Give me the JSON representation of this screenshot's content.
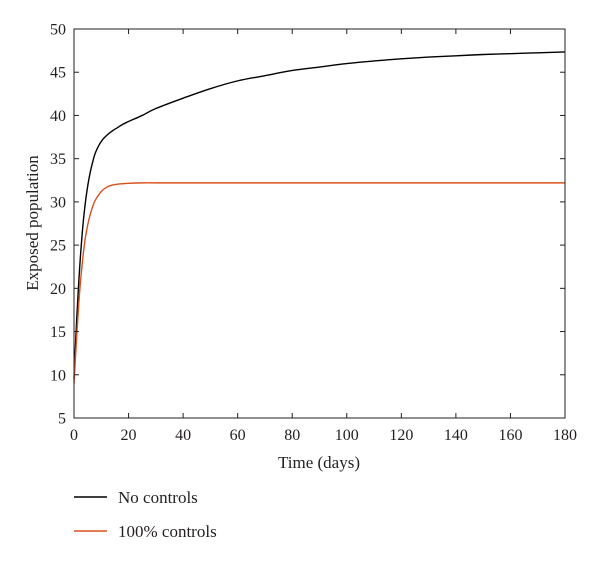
{
  "chart_data": {
    "type": "line",
    "xlabel": "Time (days)",
    "ylabel": "Exposed population",
    "xlim": [
      0,
      180
    ],
    "ylim": [
      5,
      50
    ],
    "xticks": [
      0,
      20,
      40,
      60,
      80,
      100,
      120,
      140,
      160,
      180
    ],
    "yticks": [
      5,
      10,
      15,
      20,
      25,
      30,
      35,
      40,
      45,
      50
    ],
    "grid": false,
    "legend_position": "bottom-left, below plot",
    "series": [
      {
        "name": "No controls",
        "color": "#000000",
        "x": [
          0,
          1,
          2,
          3,
          4,
          5,
          6,
          7,
          8,
          10,
          12,
          14,
          16,
          18,
          20,
          25,
          30,
          40,
          50,
          60,
          70,
          80,
          90,
          100,
          110,
          120,
          130,
          140,
          150,
          160,
          170,
          180
        ],
        "y": [
          9.5,
          16.5,
          22.0,
          26.3,
          29.5,
          31.8,
          33.5,
          34.8,
          35.8,
          37.0,
          37.7,
          38.2,
          38.6,
          39.0,
          39.3,
          40.0,
          40.8,
          42.0,
          43.1,
          44.0,
          44.6,
          45.2,
          45.6,
          46.0,
          46.3,
          46.55,
          46.75,
          46.9,
          47.05,
          47.15,
          47.25,
          47.35
        ]
      },
      {
        "name": "100% controls",
        "color": "#d9501f",
        "x": [
          0,
          1,
          2,
          3,
          4,
          5,
          6,
          7,
          8,
          10,
          12,
          14,
          16,
          18,
          20,
          25,
          30,
          40,
          60,
          80,
          100,
          120,
          140,
          160,
          180
        ],
        "y": [
          9.0,
          14.5,
          19.3,
          22.8,
          25.5,
          27.3,
          28.6,
          29.6,
          30.3,
          31.2,
          31.7,
          31.95,
          32.05,
          32.1,
          32.15,
          32.2,
          32.2,
          32.2,
          32.2,
          32.2,
          32.2,
          32.2,
          32.2,
          32.2,
          32.2
        ]
      }
    ]
  }
}
